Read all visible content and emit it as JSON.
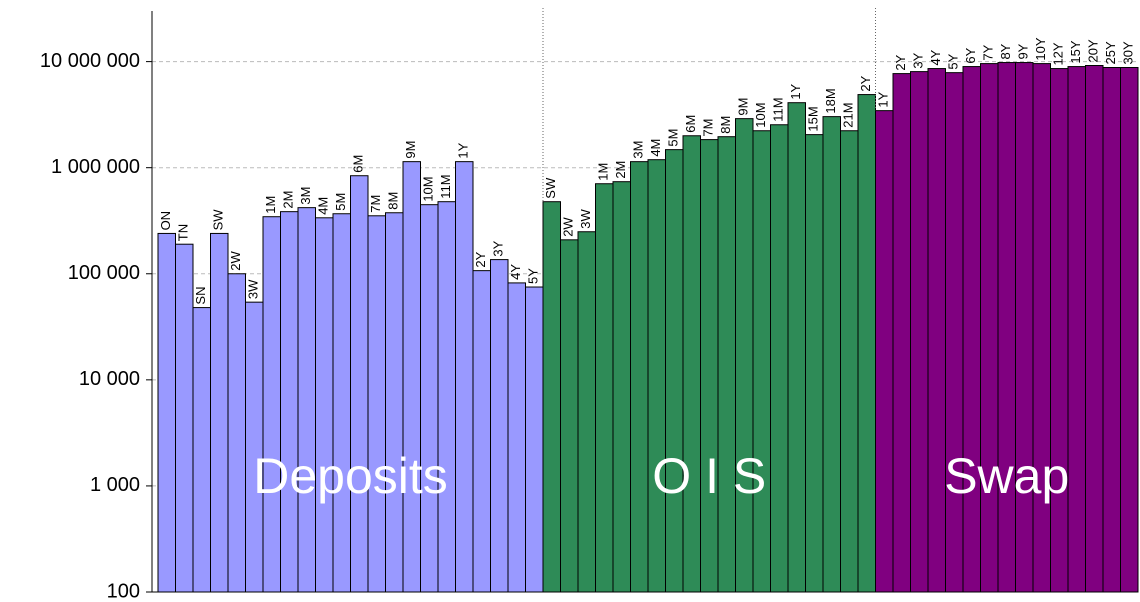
{
  "chart_data": {
    "type": "bar",
    "log_scale": true,
    "grid": true,
    "ylim": [
      100,
      30000000
    ],
    "yticks": [
      {
        "value": 100,
        "label": "100"
      },
      {
        "value": 1000,
        "label": "1 000"
      },
      {
        "value": 10000,
        "label": "10 000"
      },
      {
        "value": 100000,
        "label": "100 000"
      },
      {
        "value": 1000000,
        "label": "1 000 000"
      },
      {
        "value": 10000000,
        "label": "10 000 000"
      }
    ],
    "groups": [
      {
        "label": "Deposits",
        "color": "#9999ff",
        "categories": [
          "ON",
          "TN",
          "SN",
          "SW",
          "2W",
          "3W",
          "1M",
          "2M",
          "3M",
          "4M",
          "5M",
          "6M",
          "7M",
          "8M",
          "9M",
          "10M",
          "11M",
          "1Y",
          "2Y",
          "3Y",
          "4Y",
          "5Y"
        ],
        "values": [
          240000,
          190000,
          48000,
          240000,
          100000,
          54000,
          345000,
          385000,
          420000,
          337000,
          368000,
          840000,
          352000,
          376000,
          1140000,
          448000,
          478000,
          1140000,
          107000,
          136000,
          82000,
          75000
        ]
      },
      {
        "label": "O I S",
        "color": "#2e8b57",
        "categories": [
          "SW",
          "2W",
          "3W",
          "1M",
          "2M",
          "3M",
          "4M",
          "5M",
          "6M",
          "7M",
          "8M",
          "9M",
          "10M",
          "11M",
          "1Y",
          "15M",
          "18M",
          "21M",
          "2Y"
        ],
        "values": [
          478000,
          209000,
          249000,
          706000,
          738000,
          1140000,
          1190000,
          1480000,
          2000000,
          1840000,
          1960000,
          2900000,
          2230000,
          2540000,
          4100000,
          2050000,
          3030000,
          2230000,
          4890000
        ]
      },
      {
        "label": "Swap",
        "color": "#800080",
        "categories": [
          "1Y",
          "2Y",
          "3Y",
          "4Y",
          "5Y",
          "6Y",
          "7Y",
          "8Y",
          "9Y",
          "10Y",
          "12Y",
          "15Y",
          "20Y",
          "25Y",
          "30Y"
        ],
        "values": [
          3450000,
          7710000,
          8050000,
          8600000,
          7870000,
          8980000,
          9580000,
          9800000,
          9800000,
          9580000,
          8600000,
          8980000,
          9190000,
          8800000,
          8800000
        ]
      }
    ]
  }
}
